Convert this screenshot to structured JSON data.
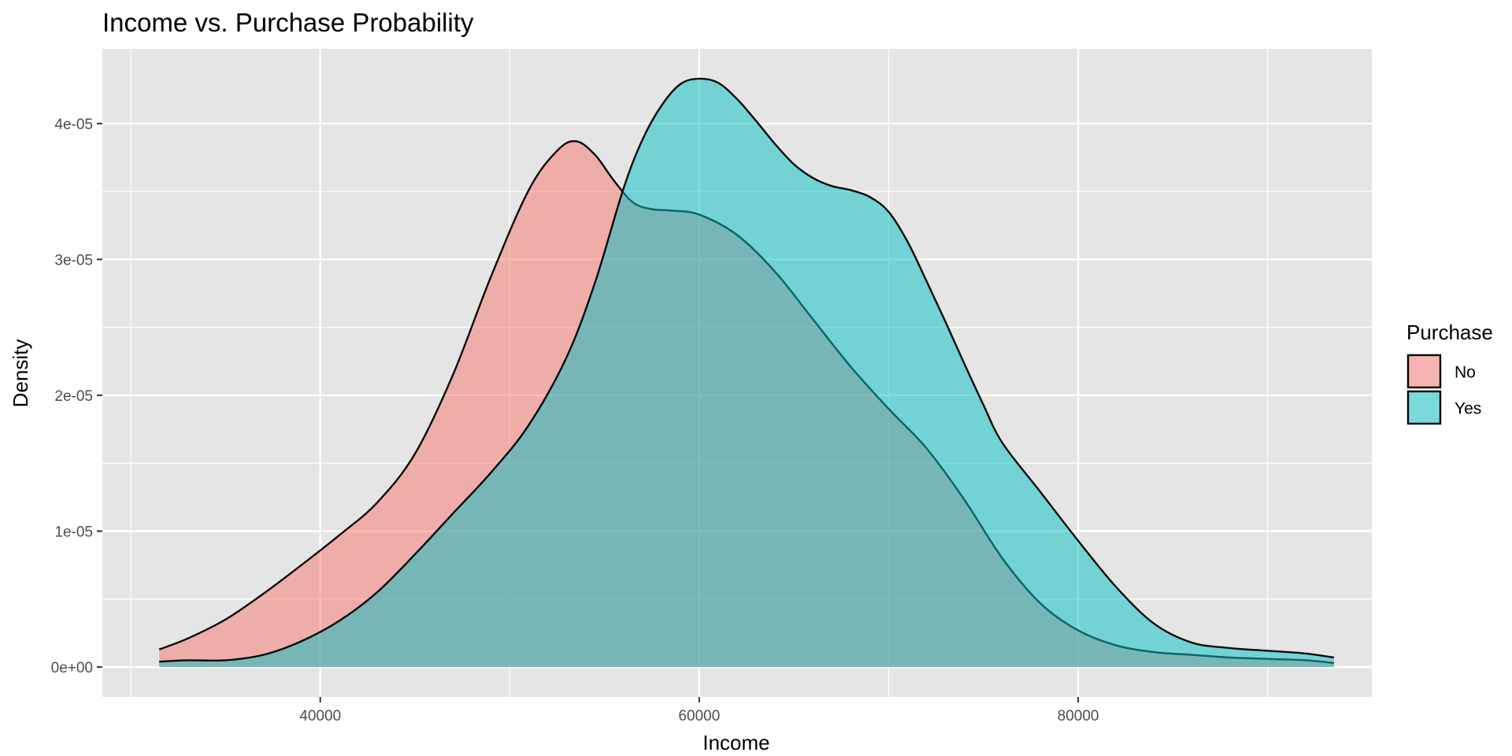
{
  "chart_data": {
    "type": "area",
    "title": "Income vs. Purchase Probability",
    "xlabel": "Income",
    "ylabel": "Density",
    "xlim": [
      28500,
      95500
    ],
    "ylim": [
      -2.2e-06,
      4.55e-05
    ],
    "x_ticks": [
      40000,
      60000,
      80000
    ],
    "x_minor_ticks": [
      30000,
      50000,
      70000,
      90000
    ],
    "y_ticks": [
      0,
      1e-05,
      2e-05,
      3e-05,
      4e-05
    ],
    "y_tick_labels": [
      "0e+00",
      "1e-05",
      "2e-05",
      "3e-05",
      "4e-05"
    ],
    "y_minor_ticks": [
      5e-06,
      1.5e-05,
      2.5e-05,
      3.5e-05
    ],
    "grid": true,
    "legend": {
      "title": "Purchase",
      "position": "right",
      "entries": [
        "No",
        "Yes"
      ]
    },
    "colors": {
      "panel_background": "#e5e5e5",
      "grid": "#ffffff",
      "outline": "#000000",
      "No": "#f8766d",
      "Yes": "#00bfc4"
    },
    "fill_opacity": 0.5,
    "series": [
      {
        "name": "No",
        "x": [
          31500,
          33000,
          35000,
          37000,
          39000,
          41000,
          43000,
          45000,
          47000,
          49000,
          51000,
          52500,
          53500,
          54500,
          55500,
          56500,
          57500,
          58500,
          60000,
          62000,
          64000,
          66000,
          68000,
          70000,
          72000,
          74000,
          76000,
          78000,
          80000,
          82000,
          84000,
          86000,
          88000,
          90000,
          92000,
          93500
        ],
        "values": [
          1.3e-06,
          2.1e-06,
          3.5e-06,
          5.4e-06,
          7.5e-06,
          9.7e-06,
          1.21e-05,
          1.57e-05,
          2.15e-05,
          2.87e-05,
          3.51e-05,
          3.8e-05,
          3.87e-05,
          3.77e-05,
          3.58e-05,
          3.42e-05,
          3.37e-05,
          3.36e-05,
          3.33e-05,
          3.18e-05,
          2.91e-05,
          2.56e-05,
          2.21e-05,
          1.9e-05,
          1.61e-05,
          1.23e-05,
          8e-06,
          4.7e-06,
          2.7e-06,
          1.6e-06,
          1.1e-06,
          9e-07,
          7e-07,
          6e-07,
          5e-07,
          3e-07
        ]
      },
      {
        "name": "Yes",
        "x": [
          31500,
          33000,
          35000,
          37000,
          39000,
          41000,
          43000,
          45000,
          47000,
          49000,
          51000,
          53000,
          54500,
          56000,
          57000,
          58000,
          59000,
          60000,
          61000,
          62000,
          63000,
          64000,
          65000,
          66000,
          67000,
          68000,
          69000,
          70000,
          71000,
          72000,
          73000,
          74000,
          75000,
          76000,
          78000,
          80000,
          82000,
          84000,
          86000,
          88000,
          90000,
          92000,
          93500
        ],
        "values": [
          4e-07,
          5e-07,
          5e-07,
          9e-07,
          1.9e-06,
          3.4e-06,
          5.5e-06,
          8.3e-06,
          1.13e-05,
          1.43e-05,
          1.78e-05,
          2.28e-05,
          2.83e-05,
          3.52e-05,
          3.88e-05,
          4.13e-05,
          4.29e-05,
          4.33e-05,
          4.3e-05,
          4.18e-05,
          4.02e-05,
          3.85e-05,
          3.7e-05,
          3.6e-05,
          3.54e-05,
          3.51e-05,
          3.46e-05,
          3.35e-05,
          3.13e-05,
          2.84e-05,
          2.54e-05,
          2.23e-05,
          1.93e-05,
          1.65e-05,
          1.29e-05,
          9.3e-06,
          5.9e-06,
          3.2e-06,
          1.8e-06,
          1.4e-06,
          1.2e-06,
          1e-06,
          7e-07
        ]
      }
    ]
  }
}
